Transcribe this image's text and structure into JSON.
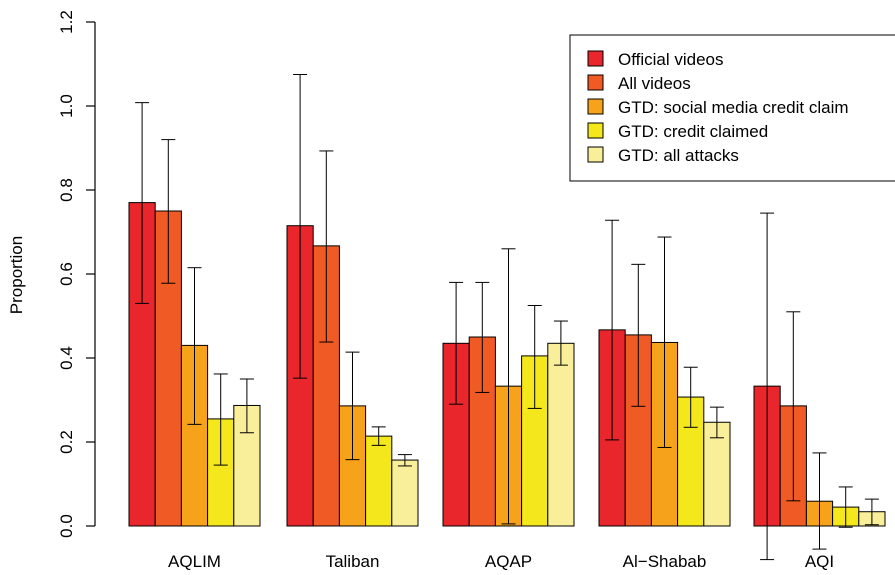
{
  "chart_data": {
    "type": "bar",
    "ylabel": "Proportion",
    "ylim": [
      0,
      1.2
    ],
    "yticks": [
      "0.0",
      "0.2",
      "0.4",
      "0.6",
      "0.8",
      "1.0",
      "1.2"
    ],
    "categories": [
      "AQLIM",
      "Taliban",
      "AQAP",
      "Al−Shabab",
      "AQI"
    ],
    "legend_position": "top-right",
    "grid": false,
    "series": [
      {
        "name": "Official videos",
        "color": "#e8262b",
        "values": [
          0.77,
          0.715,
          0.435,
          0.467,
          0.333
        ],
        "err_low": [
          0.53,
          0.352,
          0.29,
          0.205,
          -0.08
        ],
        "err_high": [
          1.008,
          1.075,
          0.58,
          0.728,
          0.745
        ]
      },
      {
        "name": "All videos",
        "color": "#f05a24",
        "values": [
          0.75,
          0.667,
          0.45,
          0.455,
          0.286
        ],
        "err_low": [
          0.578,
          0.438,
          0.318,
          0.285,
          0.06
        ],
        "err_high": [
          0.92,
          0.893,
          0.58,
          0.623,
          0.51
        ]
      },
      {
        "name": "GTD: social media credit claim",
        "color": "#f7a21b",
        "values": [
          0.43,
          0.286,
          0.333,
          0.437,
          0.059
        ],
        "err_low": [
          0.242,
          0.158,
          0.005,
          0.187,
          -0.055
        ],
        "err_high": [
          0.615,
          0.414,
          0.66,
          0.688,
          0.174
        ]
      },
      {
        "name": "GTD: credit claimed",
        "color": "#f4e81c",
        "values": [
          0.255,
          0.214,
          0.405,
          0.307,
          0.045
        ],
        "err_low": [
          0.145,
          0.192,
          0.28,
          0.235,
          -0.003
        ],
        "err_high": [
          0.362,
          0.236,
          0.525,
          0.378,
          0.093
        ]
      },
      {
        "name": "GTD: all attacks",
        "color": "#f9ee99",
        "values": [
          0.287,
          0.157,
          0.435,
          0.247,
          0.034
        ],
        "err_low": [
          0.222,
          0.143,
          0.383,
          0.21,
          0.003
        ],
        "err_high": [
          0.35,
          0.17,
          0.488,
          0.283,
          0.064
        ]
      }
    ]
  }
}
